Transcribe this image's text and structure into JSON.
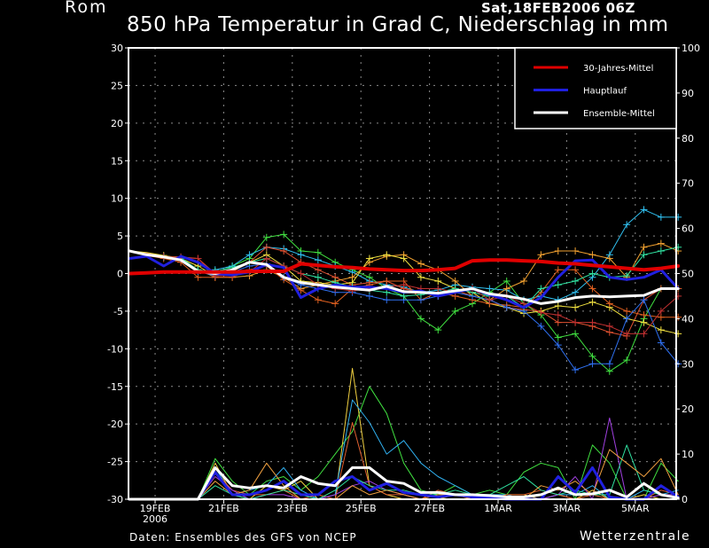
{
  "header": {
    "station": "Rom",
    "run_date": "Sat,18FEB2006 06Z",
    "title": "850 hPa Temperatur in Grad C, Niederschlag in mm"
  },
  "footer": {
    "credit": "Daten: Ensembles des GFS von NCEP",
    "brand": "Wetterzentrale"
  },
  "chart_data": {
    "type": "line",
    "title": "850 hPa Temperatur in Grad C, Niederschlag in mm",
    "xlabel": "",
    "ylabel_left": "",
    "ylabel_right": "",
    "x_unit": "12-hour steps from 18FEB2006 06Z",
    "x_range": [
      0,
      32
    ],
    "ylim_left": [
      -30,
      30
    ],
    "ylim_right": [
      0,
      100
    ],
    "left_ticks": [
      "30",
      "25",
      "20",
      "15",
      "10",
      "5",
      "0",
      "-5",
      "-10",
      "-15",
      "-20",
      "-25",
      "-30"
    ],
    "left_tick_values": [
      30,
      25,
      20,
      15,
      10,
      5,
      0,
      -5,
      -10,
      -15,
      -20,
      -25,
      -30
    ],
    "right_ticks": [
      "100",
      "90",
      "80",
      "70",
      "60",
      "50",
      "40",
      "30",
      "20",
      "10",
      "0"
    ],
    "right_tick_values": [
      100,
      90,
      80,
      70,
      60,
      50,
      40,
      30,
      20,
      10,
      0
    ],
    "x_ticks": [
      {
        "label": "19FEB",
        "sub": "2006",
        "x": 1.5
      },
      {
        "label": "21FEB",
        "sub": "",
        "x": 5.5
      },
      {
        "label": "23FEB",
        "sub": "",
        "x": 9.5
      },
      {
        "label": "25FEB",
        "sub": "",
        "x": 13.5
      },
      {
        "label": "27FEB",
        "sub": "",
        "x": 17.5
      },
      {
        "label": "1MAR",
        "sub": "",
        "x": 21.5
      },
      {
        "label": "3MAR",
        "sub": "",
        "x": 25.5
      },
      {
        "label": "5MAR",
        "sub": "",
        "x": 29.5
      }
    ],
    "grid": true,
    "legend_position": "top-right",
    "legend": [
      {
        "label": "30-Jahres-Mittel",
        "color": "#e00000"
      },
      {
        "label": "Hauptlauf",
        "color": "#2020e0"
      },
      {
        "label": "Ensemble-Mittel",
        "color": "#ffffff"
      }
    ],
    "temperature": {
      "climatology": {
        "name": "30-Jahres-Mittel",
        "color": "#e00000",
        "values": [
          0,
          0.1,
          0.2,
          0.2,
          0.2,
          0.2,
          0.2,
          0.3,
          0.3,
          0.3,
          1.3,
          1.1,
          0.9,
          0.8,
          0.6,
          0.5,
          0.4,
          0.4,
          0.5,
          0.7,
          1.7,
          1.8,
          1.8,
          1.7,
          1.6,
          1.4,
          1.3,
          1.1,
          0.9,
          0.7,
          0.5,
          0.7,
          1.0
        ]
      },
      "main_run": {
        "name": "Hauptlauf",
        "color": "#2020e0",
        "values": [
          2.0,
          2.3,
          1.0,
          2.3,
          1.5,
          0.0,
          -0.2,
          0.2,
          1.2,
          0.8,
          -3.2,
          -2.0,
          -1.5,
          -1.8,
          -1.8,
          -2.0,
          -2.5,
          -2.3,
          -3.0,
          -2.5,
          -2.0,
          -2.8,
          -3.5,
          -4.5,
          -3.2,
          -0.5,
          1.7,
          1.8,
          -0.5,
          -0.8,
          -0.5,
          0.5,
          -2.0
        ]
      },
      "ensemble_mean": {
        "name": "Ensemble-Mittel",
        "color": "#ffffff",
        "values": [
          3.0,
          2.5,
          2.2,
          1.8,
          0.3,
          0.0,
          0.5,
          1.5,
          1.2,
          -0.5,
          -1.2,
          -1.5,
          -1.8,
          -2.0,
          -2.2,
          -1.7,
          -2.4,
          -2.5,
          -2.6,
          -2.3,
          -2.0,
          -2.7,
          -3.0,
          -3.4,
          -4.0,
          -3.7,
          -3.2,
          -3.0,
          -3.1,
          -3.0,
          -2.9,
          -2.0,
          -2.0
        ]
      },
      "members": [
        {
          "color": "#40e040",
          "values": [
            3,
            2.6,
            2.2,
            2,
            0.5,
            0,
            1,
            2,
            4.8,
            5.2,
            3,
            2.8,
            1.5,
            0.5,
            -0.5,
            -2,
            -3,
            -6,
            -7.5,
            -5,
            -4,
            -2.5,
            -1,
            -4,
            -5.5,
            -8.5,
            -8,
            -11,
            -13,
            -11.5,
            -6,
            -2,
            -2
          ]
        },
        {
          "color": "#30c0f0",
          "values": [
            3,
            2.6,
            2.2,
            2,
            0.3,
            0.5,
            1,
            2.5,
            3.5,
            3.3,
            2.5,
            1.8,
            1.0,
            0.2,
            -1.0,
            -1.5,
            -1.8,
            -2.5,
            -2.2,
            -1.5,
            -1.8,
            -2.0,
            -2.2,
            -3.5,
            -3.0,
            -3.5,
            -2.5,
            -0.5,
            2.5,
            6.5,
            8.5,
            7.5,
            7.5
          ]
        },
        {
          "color": "#e05030",
          "values": [
            3,
            2.7,
            2.3,
            2.2,
            2.0,
            0,
            0.3,
            1.5,
            3.5,
            3,
            1.5,
            0.5,
            -0.5,
            -1.5,
            -1.2,
            -1.0,
            -2.0,
            -2.5,
            -3,
            -2.2,
            -3,
            -3.5,
            -4.5,
            -4.8,
            -5,
            -6.5,
            -6.5,
            -7,
            -7.8,
            -8.3,
            -3.5,
            -2,
            -2
          ]
        },
        {
          "color": "#f0a030",
          "values": [
            3,
            2.5,
            2.2,
            2,
            0.5,
            -0.5,
            -0.5,
            -0.3,
            0.5,
            -0.5,
            -2,
            -1.5,
            -1.0,
            -0.5,
            1.5,
            2.3,
            2.5,
            1.3,
            0.5,
            -1,
            -3,
            -3.5,
            -2,
            -1,
            2.5,
            3,
            3,
            2.5,
            2,
            -0.5,
            3.5,
            4,
            3
          ]
        },
        {
          "color": "#f0e040",
          "values": [
            3,
            2.8,
            2.4,
            2.0,
            1.0,
            -0.3,
            0.3,
            1.5,
            2.5,
            1.0,
            -1.0,
            -1.2,
            -1.5,
            -1.2,
            2.0,
            2.5,
            2.0,
            -0.5,
            -1.0,
            -2.0,
            -2.5,
            -4.0,
            -4.5,
            -5.3,
            -5.0,
            -4.3,
            -4.5,
            -3.8,
            -4.5,
            -6,
            -6.5,
            -7.5,
            -8
          ]
        },
        {
          "color": "#e06020",
          "values": [
            3,
            2.4,
            2.0,
            1.5,
            -0.5,
            -0.5,
            -0.5,
            0.5,
            1.0,
            -0.8,
            -2.2,
            -3.5,
            -4.0,
            -2.0,
            -1.5,
            -1.0,
            -1.0,
            -3.5,
            -2.5,
            -3,
            -3.5,
            -4,
            -4.2,
            -4.5,
            -2.5,
            0.5,
            0.5,
            -2,
            -4,
            -5,
            -5.5,
            -5.8,
            -5.8
          ]
        },
        {
          "color": "#2f70f0",
          "values": [
            3,
            2.6,
            2.2,
            2,
            0.3,
            -0.3,
            0.2,
            1.0,
            1.3,
            -0.5,
            -1.5,
            -2.0,
            -2.5,
            -2.5,
            -3.0,
            -3.5,
            -3.5,
            -3.5,
            -3.0,
            -2.5,
            -3.0,
            -3.5,
            -4.5,
            -5.0,
            -7,
            -9.5,
            -12.8,
            -12,
            -12,
            -6,
            -3.5,
            -9.2,
            -12
          ]
        },
        {
          "color": "#30e0a0",
          "values": [
            3,
            2.6,
            2.3,
            2.1,
            0.5,
            0.3,
            0.8,
            1.5,
            2.0,
            1.0,
            0,
            -0.5,
            -1.2,
            -1.8,
            -2.2,
            -2.5,
            -3.0,
            -2.8,
            -2.5,
            -2.0,
            -2.5,
            -3.0,
            -3.0,
            -4.5,
            -2.0,
            -1.5,
            -1.0,
            0,
            -0.5,
            -0.3,
            2.5,
            3.0,
            3.5
          ]
        },
        {
          "color": "#c03030",
          "values": [
            3,
            2.5,
            2.3,
            2.1,
            2.0,
            -0.3,
            -0.3,
            0.2,
            2.0,
            1.0,
            0.0,
            -1.5,
            -2.0,
            -2.3,
            -2.0,
            -1.8,
            -1.5,
            -2.0,
            -2.0,
            -2.5,
            -2.0,
            -3.5,
            -3.0,
            -4.0,
            -5.2,
            -5.5,
            -6.5,
            -6.5,
            -7.0,
            -8.0,
            -8.0,
            -5.0,
            -3.0
          ]
        }
      ]
    },
    "precipitation": {
      "ensemble_mean": {
        "name": "Ensemble-Mittel",
        "color": "#ffffff",
        "values": [
          0,
          0,
          0,
          0,
          0,
          7,
          3,
          2.5,
          3,
          2.5,
          5,
          3.5,
          3,
          7,
          7,
          4,
          3.5,
          1.5,
          1.5,
          1,
          1,
          0.8,
          0.5,
          0.5,
          1,
          2.5,
          1,
          1.2,
          2,
          0.5,
          3.5,
          1,
          0.3
        ]
      },
      "main_run": {
        "name": "Hauptlauf",
        "color": "#2020e0",
        "values": [
          0,
          0,
          0,
          0,
          0,
          6,
          1,
          1,
          2,
          4,
          1,
          1,
          4,
          5,
          2,
          3.5,
          1.5,
          1,
          0.5,
          1,
          0.5,
          0.3,
          0,
          0,
          0,
          5,
          1.5,
          7,
          0.5,
          0,
          0,
          3,
          0.5
        ]
      },
      "members": [
        {
          "color": "#40e040",
          "values": [
            0,
            0,
            0,
            0,
            0,
            9,
            4,
            1,
            4,
            5,
            2,
            5,
            10,
            15,
            25,
            19,
            8,
            2,
            1,
            3,
            1,
            2,
            1,
            6,
            8,
            7,
            0,
            12,
            8,
            0,
            0,
            8,
            4
          ]
        },
        {
          "color": "#f0d040",
          "values": [
            0,
            0,
            0,
            0,
            0,
            8,
            1,
            0,
            3,
            2,
            4,
            0,
            0,
            29,
            3,
            1,
            0,
            0,
            0,
            1,
            1,
            0,
            1,
            1,
            0,
            1,
            0,
            2,
            0,
            0,
            1,
            0,
            0
          ]
        },
        {
          "color": "#30b0f0",
          "values": [
            0,
            0,
            0,
            0,
            0,
            7,
            1,
            2,
            3,
            7,
            2,
            0,
            1,
            22,
            17,
            10,
            13,
            8,
            5,
            3,
            1,
            1,
            1,
            0,
            0,
            1,
            1,
            3,
            0,
            0,
            2,
            1,
            2
          ]
        },
        {
          "color": "#e06030",
          "values": [
            0,
            0,
            0,
            0,
            0,
            6,
            2,
            1,
            1,
            2,
            0,
            1,
            0,
            17,
            3,
            1,
            1,
            0,
            2,
            1,
            0,
            0,
            1,
            1,
            2,
            1,
            0,
            1,
            0,
            0,
            0,
            2,
            1
          ]
        },
        {
          "color": "#a040e0",
          "values": [
            0,
            0,
            0,
            0,
            0,
            5,
            2,
            0,
            1,
            1,
            0,
            0,
            1,
            3,
            4,
            2,
            1,
            0,
            0,
            0,
            0,
            0,
            0,
            0,
            0,
            1,
            5,
            0,
            18,
            0,
            0,
            1,
            1
          ]
        },
        {
          "color": "#30e0a0",
          "values": [
            0,
            0,
            0,
            0,
            0,
            3,
            1,
            0,
            1,
            2,
            1,
            0,
            2,
            5,
            3,
            2,
            2,
            1,
            1,
            2,
            1,
            1,
            3,
            5,
            2,
            1,
            2,
            1,
            1,
            12,
            2,
            1,
            0
          ]
        },
        {
          "color": "#f0a040",
          "values": [
            0,
            0,
            0,
            0,
            0,
            4,
            1,
            2,
            8,
            3,
            0,
            0,
            0,
            3,
            1,
            2,
            1,
            0,
            1,
            1,
            0,
            0,
            0,
            0,
            3,
            2,
            4,
            1,
            11,
            8,
            5,
            9,
            1
          ]
        }
      ]
    }
  }
}
